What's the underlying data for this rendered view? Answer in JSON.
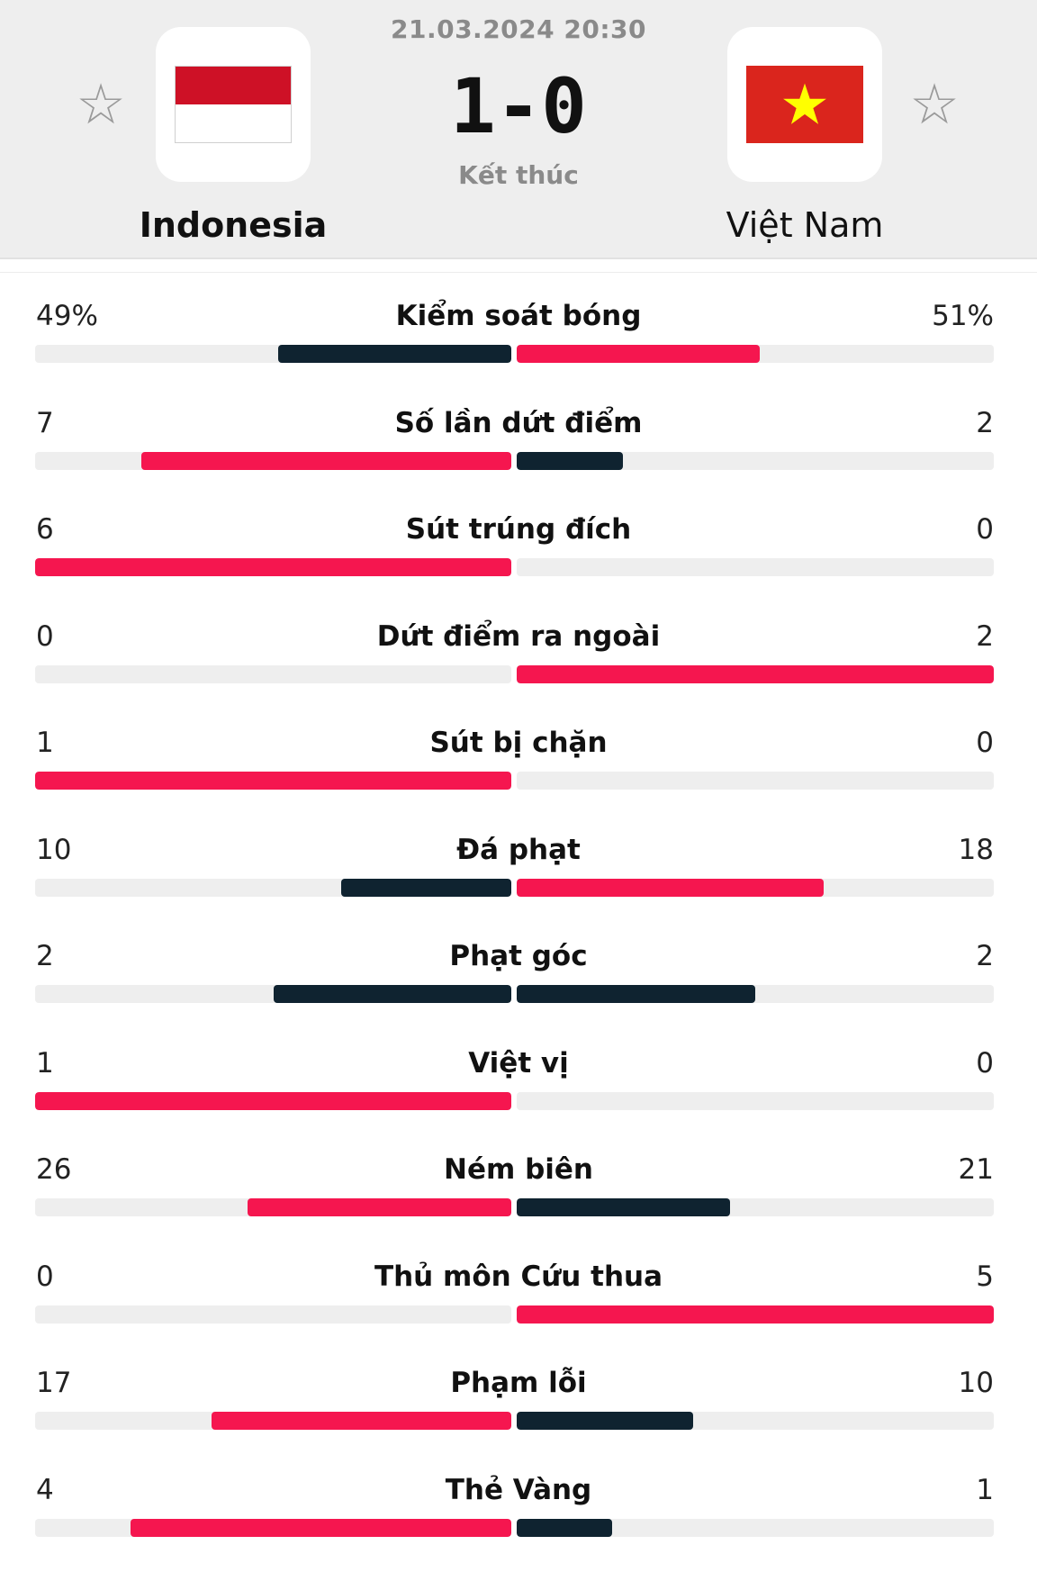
{
  "match": {
    "datetime": "21.03.2024 20:30",
    "score": "1-0",
    "status": "Kết thúc",
    "home": {
      "name": "Indonesia",
      "flag_colors": [
        "#ce1126",
        "#ffffff"
      ]
    },
    "away": {
      "name": "Việt Nam",
      "flag_colors": [
        "#da251d",
        "#ffff00"
      ]
    },
    "favorite_icon": "star-outline-icon"
  },
  "colors": {
    "accent": "#f5164f",
    "dark": "#0f2330",
    "track": "#eeeeee"
  },
  "stats": [
    {
      "label": "Kiểm soát bóng",
      "home": "49%",
      "away": "51%",
      "home_val": 49,
      "away_val": 51,
      "max": 100,
      "leader": "away"
    },
    {
      "label": "Số lần dứt điểm",
      "home": "7",
      "away": "2",
      "home_val": 7,
      "away_val": 2,
      "max": 9,
      "leader": "home"
    },
    {
      "label": "Sút trúng đích",
      "home": "6",
      "away": "0",
      "home_val": 6,
      "away_val": 0,
      "max": 6,
      "leader": "home"
    },
    {
      "label": "Dứt điểm ra ngoài",
      "home": "0",
      "away": "2",
      "home_val": 0,
      "away_val": 2,
      "max": 2,
      "leader": "away"
    },
    {
      "label": "Sút bị chặn",
      "home": "1",
      "away": "0",
      "home_val": 1,
      "away_val": 0,
      "max": 1,
      "leader": "home"
    },
    {
      "label": "Đá phạt",
      "home": "10",
      "away": "18",
      "home_val": 10,
      "away_val": 18,
      "max": 28,
      "leader": "away"
    },
    {
      "label": "Phạt góc",
      "home": "2",
      "away": "2",
      "home_val": 2,
      "away_val": 2,
      "max": 4,
      "leader": "none"
    },
    {
      "label": "Việt vị",
      "home": "1",
      "away": "0",
      "home_val": 1,
      "away_val": 0,
      "max": 1,
      "leader": "home"
    },
    {
      "label": "Ném biên",
      "home": "26",
      "away": "21",
      "home_val": 26,
      "away_val": 21,
      "max": 47,
      "leader": "home"
    },
    {
      "label": "Thủ môn Cứu thua",
      "home": "0",
      "away": "5",
      "home_val": 0,
      "away_val": 5,
      "max": 5,
      "leader": "away"
    },
    {
      "label": "Phạm lỗi",
      "home": "17",
      "away": "10",
      "home_val": 17,
      "away_val": 10,
      "max": 27,
      "leader": "home"
    },
    {
      "label": "Thẻ Vàng",
      "home": "4",
      "away": "1",
      "home_val": 4,
      "away_val": 1,
      "max": 5,
      "leader": "home"
    }
  ]
}
